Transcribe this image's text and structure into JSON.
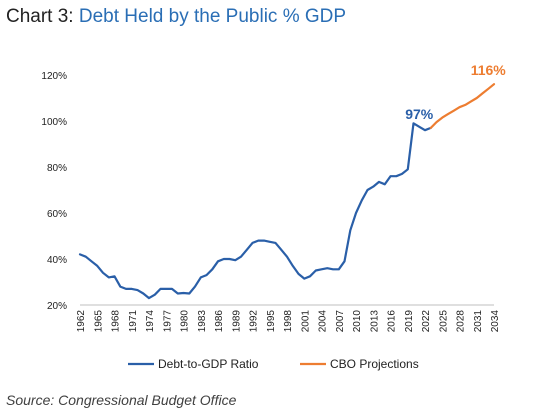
{
  "header": {
    "prefix": "Chart 3:",
    "title": "Debt Held by the Public % GDP"
  },
  "source": "Source: Congressional Budget Office",
  "chart_data": {
    "type": "line",
    "title": "Debt Held by the Public % GDP",
    "xlabel": "",
    "ylabel": "",
    "ylim": [
      20,
      120
    ],
    "yticks": [
      "20%",
      "40%",
      "60%",
      "80%",
      "100%",
      "120%"
    ],
    "ytick_values": [
      20,
      40,
      60,
      80,
      100,
      120
    ],
    "xlim": [
      1962,
      2034
    ],
    "xticks": [
      1962,
      1965,
      1968,
      1971,
      1974,
      1977,
      1980,
      1983,
      1986,
      1989,
      1992,
      1995,
      1998,
      2001,
      2004,
      2007,
      2010,
      2013,
      2016,
      2019,
      2022,
      2025,
      2028,
      2031,
      2034
    ],
    "grid": false,
    "legend_position": "bottom",
    "series": [
      {
        "name": "Debt-to-GDP Ratio",
        "color": "#2a5fa8",
        "x": [
          1962,
          1963,
          1964,
          1965,
          1966,
          1967,
          1968,
          1969,
          1970,
          1971,
          1972,
          1973,
          1974,
          1975,
          1976,
          1977,
          1978,
          1979,
          1980,
          1981,
          1982,
          1983,
          1984,
          1985,
          1986,
          1987,
          1988,
          1989,
          1990,
          1991,
          1992,
          1993,
          1994,
          1995,
          1996,
          1997,
          1998,
          1999,
          2000,
          2001,
          2002,
          2003,
          2004,
          2005,
          2006,
          2007,
          2008,
          2009,
          2010,
          2011,
          2012,
          2013,
          2014,
          2015,
          2016,
          2017,
          2018,
          2019,
          2020,
          2021,
          2022,
          2023
        ],
        "values": [
          42,
          41,
          39,
          37,
          34,
          32,
          32.5,
          28,
          27,
          27,
          26.5,
          25,
          23,
          24.5,
          27,
          27,
          27,
          25,
          25.2,
          25,
          28,
          32,
          33,
          35.5,
          39,
          40,
          40,
          39.5,
          41,
          44,
          47,
          48,
          48,
          47.5,
          47,
          44,
          41,
          37,
          33.5,
          31.5,
          32.5,
          35,
          35.5,
          36,
          35.5,
          35.5,
          39,
          52.5,
          60,
          65.5,
          70,
          71.5,
          73.5,
          72.5,
          76,
          76,
          77,
          79,
          99,
          97.5,
          96,
          97
        ]
      },
      {
        "name": "CBO Projections",
        "color": "#ed7d31",
        "x": [
          2023,
          2024,
          2025,
          2026,
          2027,
          2028,
          2029,
          2030,
          2031,
          2032,
          2033,
          2034
        ],
        "values": [
          97,
          99.5,
          101.5,
          103,
          104.5,
          106,
          107,
          108.5,
          110,
          112,
          114,
          116
        ]
      }
    ],
    "annotations": [
      {
        "text": "97%",
        "x": 2021,
        "y": 97,
        "color": "#2a5fa8"
      },
      {
        "text": "116%",
        "x": 2033,
        "y": 116,
        "color": "#ed7d31"
      }
    ]
  }
}
